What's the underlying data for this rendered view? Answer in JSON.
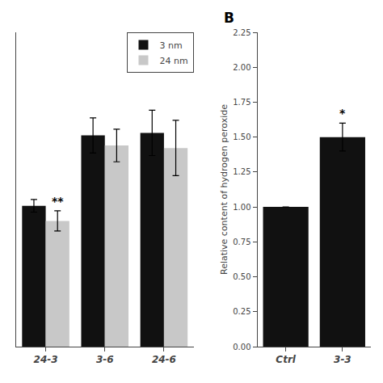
{
  "chart_data": [
    {
      "type": "bar",
      "categories": [
        "24-3",
        "3-6",
        "24-6"
      ],
      "series": [
        {
          "name": "3 nm",
          "color": "#111111",
          "values": [
            1.12,
            1.68,
            1.7
          ],
          "errors": [
            0.05,
            0.14,
            0.18
          ]
        },
        {
          "name": "24 nm",
          "color": "#c8c8c8",
          "values": [
            1.0,
            1.6,
            1.58
          ],
          "errors": [
            0.08,
            0.13,
            0.22
          ]
        }
      ],
      "ylim": [
        0.0,
        2.5
      ],
      "tick_labels": "x",
      "grid": false,
      "legend": "upper right",
      "annotations": [
        {
          "text": "**",
          "category": "24-3",
          "series": "24 nm"
        }
      ]
    },
    {
      "type": "bar",
      "title": "B",
      "categories": [
        "Ctrl",
        "3-3"
      ],
      "values": [
        1.0,
        1.5
      ],
      "errors": [
        0.0,
        0.1
      ],
      "color": "#111111",
      "ylabel": "Relative content of hydrogen peroxide",
      "ylim": [
        0.0,
        2.25
      ],
      "yticks": [
        {
          "value": 0.0,
          "label": "0.00"
        },
        0.25,
        {
          "value": 0.5,
          "label": "0.50"
        },
        0.75,
        {
          "value": 1.0,
          "label": "1.00"
        },
        1.25,
        {
          "value": 1.5,
          "label": "1.50"
        },
        1.75,
        {
          "value": 2.0,
          "label": "2.00"
        },
        2.25
      ],
      "grid": false,
      "annotations": [
        {
          "text": "*",
          "category": "3-3"
        }
      ]
    }
  ]
}
